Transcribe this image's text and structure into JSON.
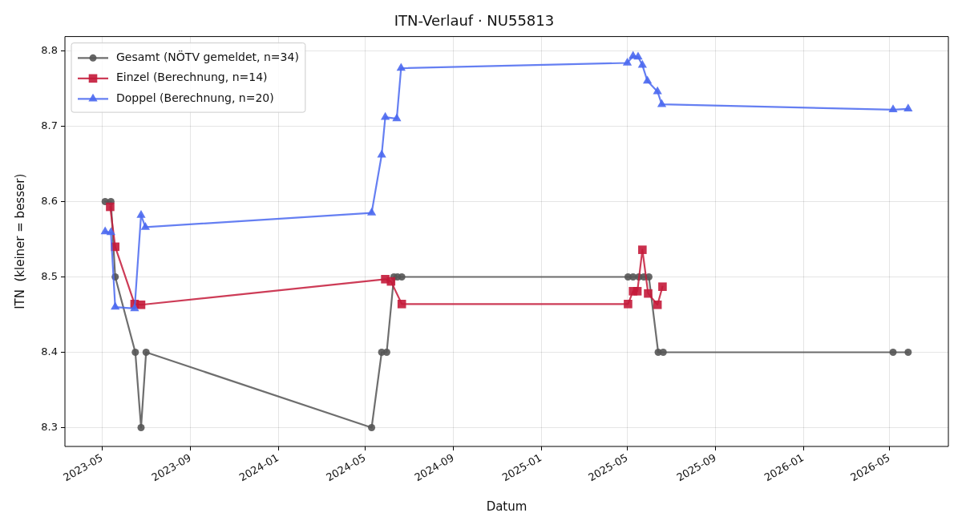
{
  "chart_data": {
    "type": "line",
    "title": "ITN-Verlauf · NU55813",
    "xlabel": "Datum",
    "ylabel": "ITN  (kleiner = besser)",
    "xlim": [
      "2023-03-10",
      "2026-07-22"
    ],
    "xticks": [
      {
        "value": "2023-05-01",
        "label": "2023-05"
      },
      {
        "value": "2023-09-01",
        "label": "2023-09"
      },
      {
        "value": "2024-01-01",
        "label": "2024-01"
      },
      {
        "value": "2024-05-01",
        "label": "2024-05"
      },
      {
        "value": "2024-09-01",
        "label": "2024-09"
      },
      {
        "value": "2025-01-01",
        "label": "2025-01"
      },
      {
        "value": "2025-05-01",
        "label": "2025-05"
      },
      {
        "value": "2025-09-01",
        "label": "2025-09"
      },
      {
        "value": "2026-01-01",
        "label": "2026-01"
      },
      {
        "value": "2026-05-01",
        "label": "2026-05"
      }
    ],
    "ylim": [
      8.275,
      8.819
    ],
    "yticks": [
      8.3,
      8.4,
      8.5,
      8.6,
      8.7,
      8.8
    ],
    "grid": true,
    "legend": "top left",
    "series": [
      {
        "name": "Gesamt (NÖTV gemeldet, n=34)",
        "marker": "circle",
        "color": "#555555",
        "x": [
          "2023-05-05",
          "2023-05-13",
          "2023-05-19",
          "2023-06-16",
          "2023-06-24",
          "2023-07-01",
          "2024-05-10",
          "2024-05-24",
          "2024-05-31",
          "2024-06-10",
          "2024-06-15",
          "2024-06-21",
          "2025-05-02",
          "2025-05-09",
          "2025-05-17",
          "2025-05-24",
          "2025-05-31",
          "2025-06-13",
          "2025-06-20",
          "2026-05-06",
          "2026-05-27"
        ],
        "values": [
          8.6,
          8.6,
          8.5,
          8.4,
          8.3,
          8.4,
          8.3,
          8.4,
          8.4,
          8.5,
          8.5,
          8.5,
          8.5,
          8.5,
          8.5,
          8.5,
          8.5,
          8.4,
          8.4,
          8.4,
          8.4
        ]
      },
      {
        "name": "Einzel (Berechnung, n=14)",
        "marker": "square",
        "color": "#c41a3a",
        "x": [
          "2023-05-12",
          "2023-05-19",
          "2023-06-15",
          "2023-06-24",
          "2024-05-29",
          "2024-06-06",
          "2024-06-21",
          "2025-05-02",
          "2025-05-09",
          "2025-05-15",
          "2025-05-22",
          "2025-05-30",
          "2025-06-12",
          "2025-06-19"
        ],
        "values": [
          8.593,
          8.54,
          8.464,
          8.463,
          8.497,
          8.494,
          8.464,
          8.464,
          8.481,
          8.481,
          8.536,
          8.478,
          8.463,
          8.487
        ]
      },
      {
        "name": "Doppel (Berechnung, n=20)",
        "marker": "triangle",
        "color": "#4a68f0",
        "x": [
          "2023-05-05",
          "2023-05-13",
          "2023-05-19",
          "2023-06-15",
          "2023-06-24",
          "2023-06-30",
          "2024-05-10",
          "2024-05-24",
          "2024-05-29",
          "2024-06-14",
          "2024-06-20",
          "2025-05-01",
          "2025-05-09",
          "2025-05-16",
          "2025-05-22",
          "2025-05-29",
          "2025-06-12",
          "2025-06-18",
          "2026-05-06",
          "2026-05-27"
        ],
        "values": [
          8.56,
          8.559,
          8.46,
          8.458,
          8.582,
          8.566,
          8.585,
          8.662,
          8.712,
          8.71,
          8.777,
          8.784,
          8.793,
          8.792,
          8.781,
          8.76,
          8.746,
          8.729,
          8.722,
          8.723
        ]
      }
    ]
  }
}
